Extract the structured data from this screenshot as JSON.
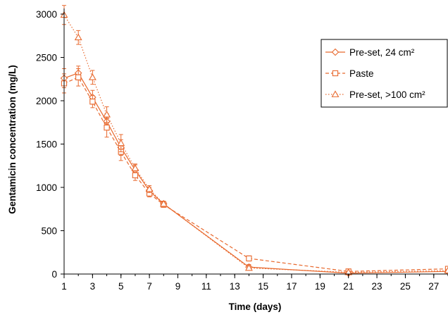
{
  "chart_data": {
    "type": "line",
    "xlabel": "Time (days)",
    "ylabel": "Gentamicin concentration (mg/L)",
    "xlim": [
      1,
      28
    ],
    "ylim": [
      0,
      3000
    ],
    "xticks": [
      1,
      3,
      5,
      7,
      9,
      11,
      13,
      15,
      17,
      19,
      21,
      23,
      25,
      27
    ],
    "yticks": [
      0,
      500,
      1000,
      1500,
      2000,
      2500,
      3000
    ],
    "grid": false,
    "legend_position": "top-right",
    "color": "#e8692e",
    "series": [
      {
        "name": "Pre-set, 24 cm²",
        "marker": "diamond",
        "line_style": "solid",
        "points": [
          {
            "x": 1,
            "y": 2260,
            "err": 110
          },
          {
            "x": 2,
            "y": 2320,
            "err": 80
          },
          {
            "x": 3,
            "y": 2040,
            "err": 80
          },
          {
            "x": 4,
            "y": 1760,
            "err": 90
          },
          {
            "x": 5,
            "y": 1460,
            "err": 90
          },
          {
            "x": 6,
            "y": 1200,
            "err": 60
          },
          {
            "x": 7,
            "y": 960,
            "err": 40
          },
          {
            "x": 8,
            "y": 810,
            "err": 30
          },
          {
            "x": 14,
            "y": 80,
            "err": 30
          },
          {
            "x": 21,
            "y": 10,
            "err": 10
          },
          {
            "x": 28,
            "y": 30,
            "err": 10
          }
        ]
      },
      {
        "name": "Paste",
        "marker": "square",
        "line_style": "dashed",
        "points": [
          {
            "x": 1,
            "y": 2200,
            "err": 110
          },
          {
            "x": 2,
            "y": 2270,
            "err": 100
          },
          {
            "x": 3,
            "y": 1990,
            "err": 70
          },
          {
            "x": 4,
            "y": 1690,
            "err": 110
          },
          {
            "x": 5,
            "y": 1410,
            "err": 100
          },
          {
            "x": 6,
            "y": 1140,
            "err": 60
          },
          {
            "x": 7,
            "y": 930,
            "err": 40
          },
          {
            "x": 8,
            "y": 800,
            "err": 30
          },
          {
            "x": 14,
            "y": 180,
            "err": 30
          },
          {
            "x": 21,
            "y": 30,
            "err": 15
          },
          {
            "x": 28,
            "y": 60,
            "err": 10
          }
        ]
      },
      {
        "name": "Pre-set, >100 cm²",
        "marker": "triangle",
        "line_style": "dotted",
        "points": [
          {
            "x": 1,
            "y": 2990,
            "err": 110
          },
          {
            "x": 2,
            "y": 2730,
            "err": 80
          },
          {
            "x": 3,
            "y": 2270,
            "err": 80
          },
          {
            "x": 4,
            "y": 1840,
            "err": 90
          },
          {
            "x": 5,
            "y": 1510,
            "err": 100
          },
          {
            "x": 6,
            "y": 1220,
            "err": 50
          },
          {
            "x": 7,
            "y": 980,
            "err": 40
          },
          {
            "x": 8,
            "y": 810,
            "err": 30
          },
          {
            "x": 14,
            "y": 70,
            "err": 20
          },
          {
            "x": 21,
            "y": 20,
            "err": 10
          },
          {
            "x": 28,
            "y": 40,
            "err": 10
          }
        ]
      }
    ]
  }
}
